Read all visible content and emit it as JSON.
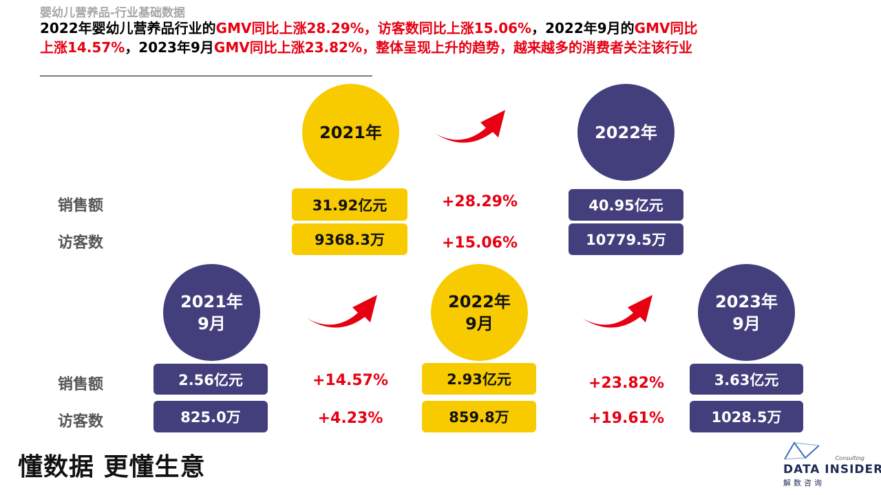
{
  "subtitle": "婴幼儿营养品-行业基础数据",
  "headline": {
    "p1": "2022年婴幼儿营养品行业的",
    "r1": "GMV同比上涨28.29%，访客数同比上涨15.06%",
    "p2": "，2022年9月的",
    "r2": "GMV同比上涨14.57%",
    "p3": "，2023年9月",
    "r3": "GMV同比上涨23.82%，整体呈现上升的趋势，越来越多的消费者关注该行业"
  },
  "labels": {
    "sales": "销售额",
    "visitors": "访客数"
  },
  "top": {
    "y2021": {
      "label": "2021年",
      "sales": "31.92亿元",
      "visitors": "9368.3万"
    },
    "y2022": {
      "label": "2022年",
      "sales": "40.95亿元",
      "visitors": "10779.5万"
    },
    "growth": {
      "sales": "+28.29%",
      "visitors": "+15.06%"
    }
  },
  "bottom": {
    "m2021": {
      "line1": "2021年",
      "line2": "9月",
      "sales": "2.56亿元",
      "visitors": "825.0万"
    },
    "m2022": {
      "line1": "2022年",
      "line2": "9月",
      "sales": "2.93亿元",
      "visitors": "859.8万"
    },
    "m2023": {
      "line1": "2023年",
      "line2": "9月",
      "sales": "3.63亿元",
      "visitors": "1028.5万"
    },
    "growth1": {
      "sales": "+14.57%",
      "visitors": "+4.23%"
    },
    "growth2": {
      "sales": "+23.82%",
      "visitors": "+19.61%"
    }
  },
  "slogan": "懂数据 更懂生意",
  "logo": {
    "name": "DATA INSIDER",
    "sub": "解数咨询",
    "consult": "Consulting"
  },
  "icons": {
    "trend": "curved-arrow-up-right-icon",
    "logo_mark": "logo-mark-icon"
  },
  "colors": {
    "accent_red": "#e60012",
    "yellow": "#f8cb00",
    "navy": "#433e7c",
    "label_gray": "#555555"
  }
}
